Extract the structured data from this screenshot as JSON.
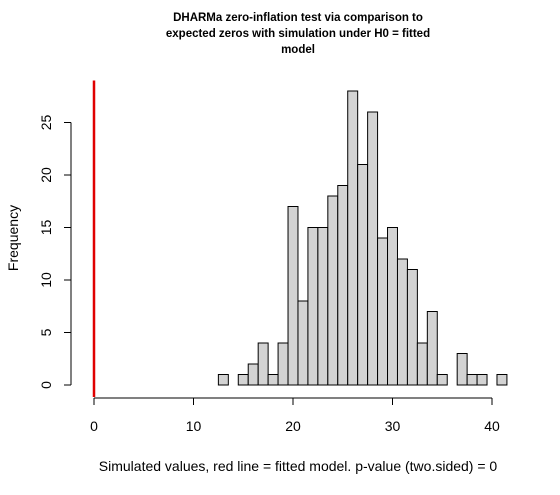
{
  "chart_data": {
    "type": "bar",
    "title_lines": [
      "DHARMa zero-inflation test via comparison to",
      "expected zeros with simulation under H0 = fitted",
      "model"
    ],
    "xlabel": "Simulated values, red line = fitted model. p-value (two.sided) = 0",
    "ylabel": "Frequency",
    "xlim": [
      0,
      41
    ],
    "ylim": [
      0,
      29
    ],
    "xticks": [
      0,
      10,
      20,
      30,
      40
    ],
    "yticks": [
      0,
      5,
      10,
      15,
      20,
      25
    ],
    "bin_width": 1,
    "x": [
      13,
      14,
      15,
      16,
      17,
      18,
      19,
      20,
      21,
      22,
      23,
      24,
      25,
      26,
      27,
      28,
      29,
      30,
      31,
      32,
      33,
      34,
      35,
      36,
      37,
      38,
      39,
      40,
      41
    ],
    "values": [
      1,
      0,
      1,
      2,
      4,
      1,
      4,
      17,
      8,
      15,
      15,
      18,
      19,
      28,
      21,
      26,
      14,
      15,
      12,
      11,
      4,
      7,
      1,
      0,
      3,
      1,
      1,
      0,
      1
    ],
    "observed_value": 0,
    "observed_line_color": "#e00000",
    "bar_color": "#d3d3d3"
  }
}
